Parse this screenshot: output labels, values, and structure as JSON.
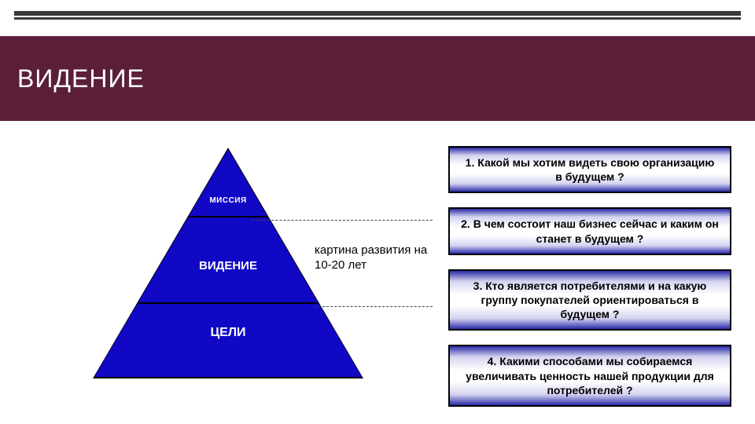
{
  "title": "ВИДЕНИЕ",
  "colors": {
    "title_band": "#5b1f3a",
    "rule": "#3a3a3a",
    "pyramid_fill": "#1108c6",
    "pyramid_border": "#000000",
    "box_border": "#000000",
    "box_gradient_outer": "#2a2aa8",
    "box_gradient_mid": "#d3d3f0",
    "box_gradient_inner": "#ffffff",
    "text_on_dark": "#ffffff",
    "text_on_light": "#000000",
    "dashed": "#444444"
  },
  "typography": {
    "title_fontsize": 32,
    "title_weight": 400,
    "pyramid_top_fontsize": 10,
    "pyramid_mid_fontsize": 15,
    "pyramid_bot_fontsize": 16,
    "callout_fontsize": 15,
    "qbox_fontsize": 14,
    "qbox_weight": 700
  },
  "pyramid": {
    "type": "triangle",
    "levels": [
      {
        "label": "МИССИЯ"
      },
      {
        "label": "ВИДЕНИЕ"
      },
      {
        "label": "ЦЕЛИ"
      }
    ],
    "callout": {
      "from_level_index": 1,
      "text": "картина развития на 10-20 лет"
    }
  },
  "questions": [
    "1. Какой мы хотим видеть свою организацию в будущем ?",
    "2. В чем состоит наш бизнес сейчас и каким он станет в будущем ?",
    "3. Кто является потребителями и на какую группу покупателей ориентироваться в будущем ?",
    "4. Какими способами мы собираемся увеличивать ценность нашей продукции для потребителей ?"
  ]
}
